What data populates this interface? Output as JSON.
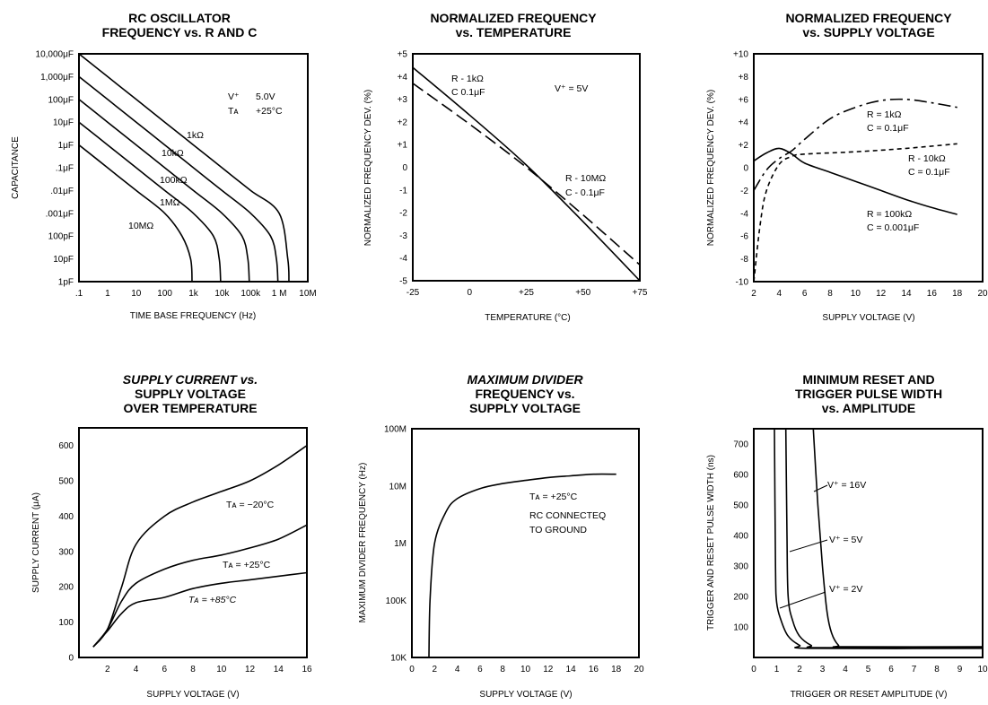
{
  "chart_data": [
    {
      "type": "line",
      "title": [
        "RC OSCILLATOR",
        "FREQUENCY vs. R AND C"
      ],
      "xlabel": "TIME BASE FREQUENCY (Hz)",
      "ylabel": "CAPACITANCE",
      "x_scale": "log",
      "y_scale": "log",
      "x_ticks": [
        ".1",
        "1",
        "10",
        "100",
        "1k",
        "10k",
        "100k",
        "1 M",
        "10M"
      ],
      "y_ticks": [
        "10,000μF",
        "1,000μF",
        "100μF",
        "10μF",
        "1μF",
        ".1μF",
        ".01μF",
        ".001μF",
        "100pF",
        "10pF",
        "1pF"
      ],
      "annotations": [
        "V⁺   5.0V",
        "Tᴀ   +25°C"
      ],
      "series": [
        {
          "name": "1kΩ",
          "points": [
            [
              0.1,
              10000
            ],
            [
              1,
              1000
            ],
            [
              10,
              100
            ],
            [
              100,
              10
            ],
            [
              1000,
              1
            ],
            [
              10000,
              0.1
            ],
            [
              100000,
              0.01
            ],
            [
              1000000,
              0.001
            ],
            [
              2000000,
              1e-05
            ],
            [
              2200000,
              1e-06
            ]
          ]
        },
        {
          "name": "10kΩ",
          "points": [
            [
              0.1,
              1000
            ],
            [
              1,
              100
            ],
            [
              10,
              10
            ],
            [
              100,
              1
            ],
            [
              1000,
              0.1
            ],
            [
              10000,
              0.01
            ],
            [
              100000,
              0.001
            ],
            [
              500000,
              0.0001
            ],
            [
              800000,
              1e-05
            ],
            [
              900000,
              1e-06
            ]
          ]
        },
        {
          "name": "100kΩ",
          "points": [
            [
              0.1,
              100
            ],
            [
              1,
              10
            ],
            [
              10,
              1
            ],
            [
              100,
              0.1
            ],
            [
              1000,
              0.01
            ],
            [
              10000,
              0.001
            ],
            [
              50000,
              0.0001
            ],
            [
              80000,
              1e-05
            ],
            [
              90000,
              1e-06
            ]
          ]
        },
        {
          "name": "1MΩ",
          "points": [
            [
              0.1,
              10
            ],
            [
              1,
              1
            ],
            [
              10,
              0.1
            ],
            [
              100,
              0.01
            ],
            [
              1000,
              0.001
            ],
            [
              5000,
              0.0001
            ],
            [
              8000,
              1e-05
            ],
            [
              9000,
              1e-06
            ]
          ]
        },
        {
          "name": "10MΩ",
          "points": [
            [
              0.1,
              1
            ],
            [
              1,
              0.1
            ],
            [
              10,
              0.01
            ],
            [
              100,
              0.001
            ],
            [
              400,
              0.0001
            ],
            [
              800,
              1e-05
            ],
            [
              900,
              1e-06
            ]
          ]
        }
      ]
    },
    {
      "type": "line",
      "title": [
        "NORMALIZED FREQUENCY",
        "vs. TEMPERATURE"
      ],
      "xlabel": "TEMPERATURE (°C)",
      "ylabel": "NORMALIZED FREQUENCY DEV. (%)",
      "xlim": [
        -25,
        75
      ],
      "ylim": [
        -5,
        5
      ],
      "x_ticks": [
        "-25",
        "0",
        "+25",
        "+50",
        "+75"
      ],
      "y_ticks": [
        "+5",
        "+4",
        "+3",
        "+2",
        "+1",
        "0",
        "-1",
        "-2",
        "-3",
        "-4",
        "-5"
      ],
      "annotations": [
        "V⁺ = 5V"
      ],
      "series": [
        {
          "name": "R - 1kΩ / C   0.1μF",
          "style": "solid",
          "points": [
            [
              -25,
              4.4
            ],
            [
              0,
              2.3
            ],
            [
              25,
              0.1
            ],
            [
              50,
              -2.4
            ],
            [
              75,
              -5
            ]
          ]
        },
        {
          "name": "R - 10MΩ / C - 0.1μF",
          "style": "dashed",
          "points": [
            [
              -25,
              3.7
            ],
            [
              0,
              1.9
            ],
            [
              25,
              0
            ],
            [
              50,
              -2.1
            ],
            [
              75,
              -4.3
            ]
          ]
        }
      ]
    },
    {
      "type": "line",
      "title": [
        "NORMALIZED FREQUENCY",
        "vs. SUPPLY VOLTAGE"
      ],
      "xlabel": "SUPPLY VOLTAGE (V)",
      "ylabel": "NORMALIZED FREQUENCY DEV. (%)",
      "xlim": [
        2,
        20
      ],
      "ylim": [
        -10,
        10
      ],
      "x_ticks": [
        "2",
        "4",
        "6",
        "8",
        "10",
        "12",
        "14",
        "16",
        "18",
        "20"
      ],
      "y_ticks": [
        "+10",
        "+8",
        "+6",
        "+4",
        "+2",
        "0",
        "-2",
        "-4",
        "-6",
        "-8",
        "-10"
      ],
      "series": [
        {
          "name": "R = 1kΩ / C = 0.1μF",
          "style": "dash-dot",
          "points": [
            [
              2,
              -2
            ],
            [
              3,
              -0.2
            ],
            [
              4,
              0.8
            ],
            [
              5,
              1.5
            ],
            [
              6,
              2.5
            ],
            [
              8,
              4.3
            ],
            [
              10,
              5.3
            ],
            [
              12,
              5.9
            ],
            [
              14,
              6
            ],
            [
              16,
              5.7
            ],
            [
              18,
              5.3
            ]
          ]
        },
        {
          "name": "R = 10kΩ / C = 0.1μF",
          "style": "dotted",
          "points": [
            [
              2,
              -10
            ],
            [
              2.5,
              -5
            ],
            [
              3,
              -2
            ],
            [
              4,
              0.3
            ],
            [
              5,
              1
            ],
            [
              6,
              1.2
            ],
            [
              10,
              1.4
            ],
            [
              14,
              1.7
            ],
            [
              18,
              2.1
            ]
          ]
        },
        {
          "name": "R = 100kΩ / C = 0.001μF",
          "style": "solid",
          "points": [
            [
              2,
              0.6
            ],
            [
              3,
              1.3
            ],
            [
              4,
              1.7
            ],
            [
              5,
              1.2
            ],
            [
              6,
              0.4
            ],
            [
              8,
              -0.4
            ],
            [
              10,
              -1.2
            ],
            [
              12,
              -2
            ],
            [
              14,
              -2.8
            ],
            [
              16,
              -3.5
            ],
            [
              18,
              -4.1
            ]
          ]
        }
      ]
    },
    {
      "type": "line",
      "title": [
        "SUPPLY CURRENT vs.",
        "SUPPLY VOLTAGE",
        "OVER TEMPERATURE"
      ],
      "xlabel": "SUPPLY VOLTAGE (V)",
      "ylabel": "SUPPLY CURRENT (μA)",
      "xlim": [
        0,
        16
      ],
      "ylim": [
        0,
        650
      ],
      "x_ticks": [
        "2",
        "4",
        "6",
        "8",
        "10",
        "12",
        "14",
        "16"
      ],
      "y_ticks": [
        "600",
        "500",
        "400",
        "300",
        "200",
        "100",
        "0"
      ],
      "series": [
        {
          "name": "Tᴀ = −20°C",
          "points": [
            [
              1,
              30
            ],
            [
              2,
              80
            ],
            [
              3,
              200
            ],
            [
              4,
              320
            ],
            [
              6,
              400
            ],
            [
              8,
              440
            ],
            [
              10,
              470
            ],
            [
              12,
              500
            ],
            [
              14,
              545
            ],
            [
              16,
              600
            ]
          ]
        },
        {
          "name": "Tᴀ = +25°C",
          "points": [
            [
              1,
              30
            ],
            [
              2,
              80
            ],
            [
              3,
              160
            ],
            [
              4,
              210
            ],
            [
              6,
              250
            ],
            [
              8,
              275
            ],
            [
              10,
              290
            ],
            [
              12,
              310
            ],
            [
              14,
              335
            ],
            [
              16,
              375
            ]
          ]
        },
        {
          "name": "Tᴀ = +85°C",
          "points": [
            [
              1,
              30
            ],
            [
              2,
              75
            ],
            [
              3,
              125
            ],
            [
              4,
              155
            ],
            [
              6,
              170
            ],
            [
              8,
              195
            ],
            [
              10,
              210
            ],
            [
              12,
              220
            ],
            [
              14,
              230
            ],
            [
              16,
              240
            ]
          ]
        }
      ]
    },
    {
      "type": "line",
      "title": [
        "MAXIMUM DIVIDER",
        "FREQUENCY vs.",
        "SUPPLY VOLTAGE"
      ],
      "xlabel": "SUPPLY VOLTAGE (V)",
      "ylabel": "MAXIMUM DIVIDER FREQUENCY (Hz)",
      "xlim": [
        0,
        20
      ],
      "y_scale": "log",
      "ylim": [
        10000,
        100000000
      ],
      "x_ticks": [
        "0",
        "2",
        "4",
        "6",
        "8",
        "10",
        "12",
        "14",
        "16",
        "18",
        "20"
      ],
      "y_ticks": [
        "100M",
        "10M",
        "1M",
        "100K",
        "10K"
      ],
      "annotations": [
        "Tᴀ = +25°C",
        "RC CONNECTED",
        "TO GROUND"
      ],
      "series": [
        {
          "name": "",
          "points": [
            [
              1.5,
              10000
            ],
            [
              1.6,
              100000
            ],
            [
              2,
              1000000
            ],
            [
              3,
              3500000
            ],
            [
              4,
              6000000
            ],
            [
              6,
              9000000
            ],
            [
              8,
              11000000
            ],
            [
              10,
              12500000
            ],
            [
              12,
              14000000
            ],
            [
              14,
              15000000
            ],
            [
              16,
              16000000
            ],
            [
              18,
              16000000
            ]
          ]
        }
      ]
    },
    {
      "type": "line",
      "title": [
        "MINIMUM RESET AND",
        "TRIGGER PULSE WIDTH",
        "vs. AMPLITUDE"
      ],
      "xlabel": "TRIGGER OR RESET AMPLITUDE (V)",
      "ylabel": "TRIGGER AND RESET PULSE WIDTH (ns)",
      "xlim": [
        0,
        10
      ],
      "ylim": [
        0,
        750
      ],
      "x_ticks": [
        "0",
        "1",
        "2",
        "3",
        "4",
        "5",
        "6",
        "7",
        "8",
        "9",
        "10"
      ],
      "y_ticks": [
        "700",
        "600",
        "500",
        "400",
        "300",
        "200",
        "100"
      ],
      "series": [
        {
          "name": "V⁺ = 2V",
          "points": [
            [
              0.9,
              750
            ],
            [
              0.95,
              300
            ],
            [
              1,
              180
            ],
            [
              1.2,
              120
            ],
            [
              1.5,
              70
            ],
            [
              2,
              40
            ],
            [
              2.5,
              30
            ],
            [
              10,
              30
            ]
          ]
        },
        {
          "name": "V⁺ = 5V",
          "points": [
            [
              1.4,
              750
            ],
            [
              1.45,
              400
            ],
            [
              1.5,
              200
            ],
            [
              1.7,
              120
            ],
            [
              2,
              70
            ],
            [
              2.5,
              40
            ],
            [
              3,
              32
            ],
            [
              10,
              32
            ]
          ]
        },
        {
          "name": "V⁺ = 16V",
          "points": [
            [
              2.6,
              750
            ],
            [
              2.8,
              500
            ],
            [
              3,
              300
            ],
            [
              3.2,
              150
            ],
            [
              3.4,
              80
            ],
            [
              3.7,
              40
            ],
            [
              4,
              35
            ],
            [
              10,
              35
            ]
          ]
        }
      ]
    }
  ],
  "labels": {
    "c1": {
      "cap1": "1kΩ",
      "cap2": "10kΩ",
      "cap3": "100kΩ",
      "cap4": "1MΩ",
      "cap5": "10MΩ",
      "vplus": "V⁺",
      "vval": "5.0V",
      "ta": "Tᴀ",
      "taval": "+25°C"
    },
    "c2": {
      "r1": "R - 1kΩ",
      "c1": "C   0.1μF",
      "v": "V⁺ = 5V",
      "r2": "R - 10MΩ",
      "c2": "C - 0.1μF"
    },
    "c3": {
      "r1": "R = 1kΩ",
      "c1": "C = 0.1μF",
      "r2": "R - 10kΩ",
      "c2": "C = 0.1μF",
      "r3": "R = 100kΩ",
      "c3": "C = 0.001μF"
    },
    "c4": {
      "t1": "Tᴀ = −20°C",
      "t2": "Tᴀ = +25°C",
      "t3": "Tᴀ = +85°C"
    },
    "c5": {
      "a1": "Tᴀ = +25°C",
      "a2": "RC CONNECTEQ",
      "a3": "TO GROUND"
    },
    "c6": {
      "v1": "V⁺ = 16V",
      "v2": "V⁺ = 5V",
      "v3": "V⁺ = 2V"
    }
  }
}
